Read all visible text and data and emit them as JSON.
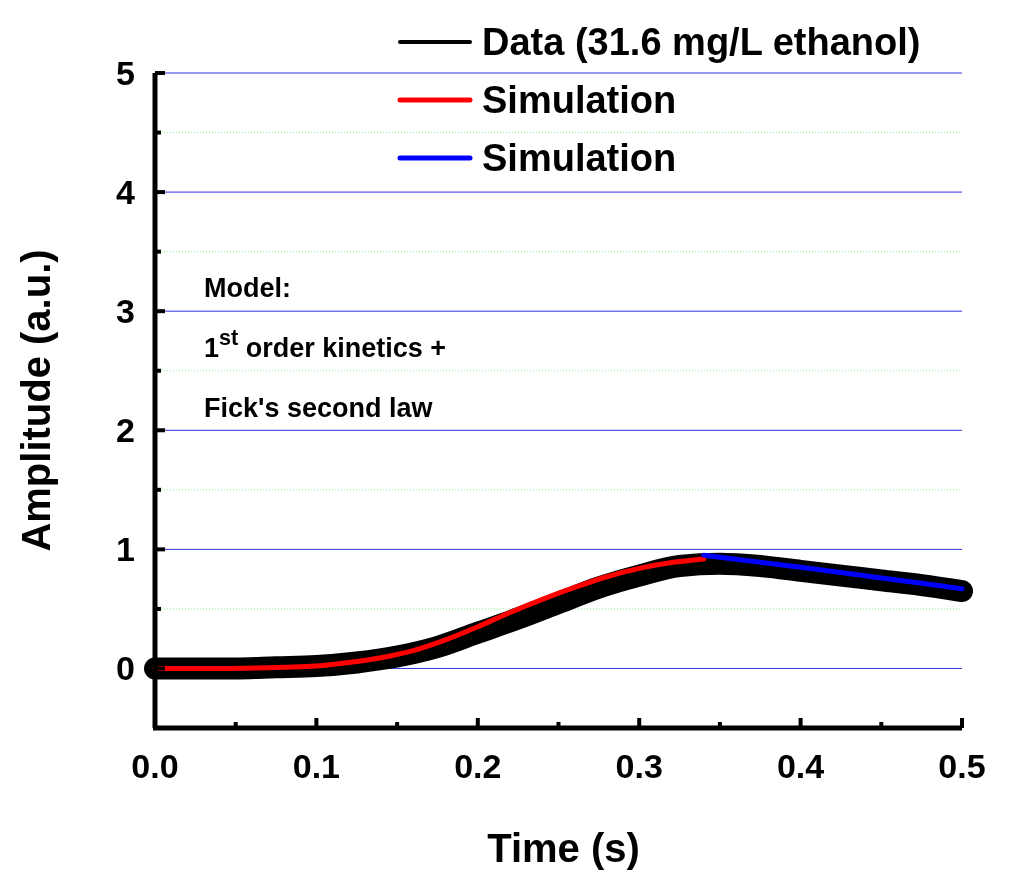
{
  "chart_data": {
    "type": "line",
    "xlabel": "Time (s)",
    "ylabel": "Amplitude (a.u.)",
    "xlim": [
      0,
      0.5
    ],
    "xticks": [
      {
        "value": 0,
        "label": "0.0"
      },
      {
        "value": 0.05,
        "label": null
      },
      0.1,
      {
        "value": 0.15,
        "label": null
      },
      0.2,
      {
        "value": 0.25,
        "label": null
      },
      0.3,
      {
        "value": 0.35,
        "label": null
      },
      0.4,
      {
        "value": 0.45,
        "label": null
      },
      0.5
    ],
    "ylim": [
      -0.5,
      5
    ],
    "yticks": [
      {
        "value": -0.5,
        "label": null
      },
      0,
      {
        "value": 0.5,
        "label": null
      },
      1,
      {
        "value": 1.5,
        "label": null
      },
      2,
      {
        "value": 2.5,
        "label": null
      },
      3,
      {
        "value": 3.5,
        "label": null
      },
      4,
      {
        "value": 4.5,
        "label": null
      },
      5
    ],
    "grid": "y",
    "legend": "top right",
    "line_style": "solid",
    "marker": "none",
    "annotations": [
      "Model:",
      "1$^{st}$ order kinetics +",
      "Fick's second law"
    ],
    "series": [
      {
        "name": "Data (31.6 mg/L ethanol)",
        "color": "#000000",
        "x": [
          0,
          0.025,
          0.05,
          0.075,
          0.1,
          0.125,
          0.15,
          0.175,
          0.2,
          0.225,
          0.25,
          0.275,
          0.3,
          0.325,
          0.35,
          0.375,
          0.4,
          0.425,
          0.45,
          0.475,
          0.5
        ],
        "values": [
          0,
          0,
          0,
          0.01,
          0.02,
          0.05,
          0.1,
          0.18,
          0.3,
          0.42,
          0.55,
          0.68,
          0.78,
          0.86,
          0.88,
          0.86,
          0.82,
          0.78,
          0.74,
          0.7,
          0.65
        ]
      },
      {
        "name": "Simulation",
        "color": "#ff0000",
        "x": [
          0,
          0.04,
          0.08,
          0.1,
          0.12,
          0.14,
          0.16,
          0.18,
          0.2,
          0.22,
          0.24,
          0.26,
          0.28,
          0.3,
          0.32,
          0.34
        ],
        "values": [
          0,
          0,
          0.01,
          0.02,
          0.05,
          0.09,
          0.15,
          0.24,
          0.35,
          0.47,
          0.58,
          0.68,
          0.77,
          0.84,
          0.89,
          0.92
        ]
      },
      {
        "name": "Simulation",
        "color": "#0000ff",
        "x": [
          0.34,
          0.4,
          0.45,
          0.5
        ],
        "values": [
          0.95,
          0.85,
          0.76,
          0.67
        ]
      }
    ]
  }
}
